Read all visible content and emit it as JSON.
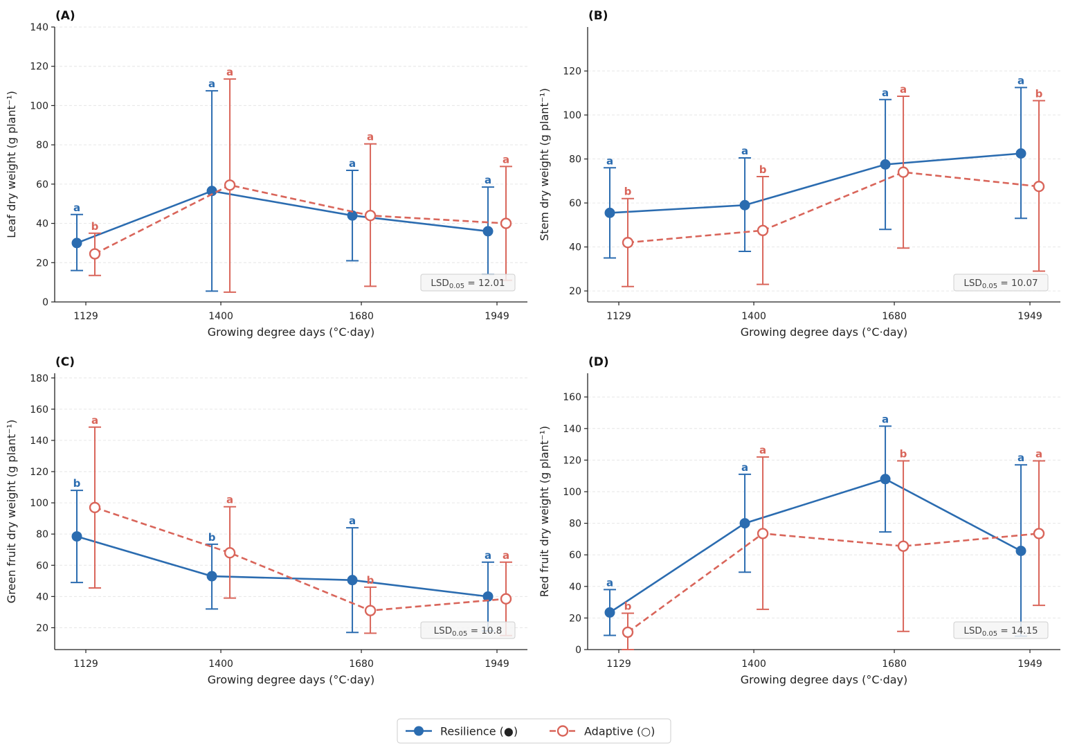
{
  "legend": {
    "placement": "bottom-center",
    "entries": [
      {
        "label": "Resilience (●)",
        "color": "#2b6cb0",
        "marker": "filled-circle",
        "line": "solid"
      },
      {
        "label": "Adaptive (○)",
        "color": "#d9655a",
        "marker": "open-circle",
        "line": "dashed"
      }
    ]
  },
  "chart_data": [
    {
      "type": "line",
      "panel_label": "(A)",
      "title": "",
      "xlabel": "Growing degree days (°C·day)",
      "ylabel": "Leaf dry weight (g plant⁻¹)",
      "categories": [
        "1129",
        "1400",
        "1680",
        "1949"
      ],
      "ylim": [
        0,
        140
      ],
      "yticks": [
        0,
        20,
        40,
        60,
        80,
        100,
        120,
        140
      ],
      "grid": "horizontal-dashed",
      "annotation": {
        "lsd_prefix": "LSD",
        "lsd_sub": "0.05",
        "lsd_value": " = 12.01"
      },
      "series": [
        {
          "name": "Resilience (●)",
          "values": [
            30,
            56.5,
            44,
            36
          ],
          "err_low": [
            16,
            5.5,
            21,
            14
          ],
          "err_high": [
            44.5,
            107.5,
            67,
            58.5
          ],
          "letters": [
            "a",
            "a",
            "a",
            "a"
          ]
        },
        {
          "name": "Adaptive (○)",
          "values": [
            24.5,
            59.5,
            44,
            40
          ],
          "err_low": [
            13.5,
            5,
            8,
            11
          ],
          "err_high": [
            35,
            113.5,
            80.5,
            69
          ],
          "letters": [
            "b",
            "a",
            "a",
            "a"
          ]
        }
      ]
    },
    {
      "type": "line",
      "panel_label": "(B)",
      "title": "",
      "xlabel": "Growing degree days (°C·day)",
      "ylabel": "Stem dry weight (g plant⁻¹)",
      "categories": [
        "1129",
        "1400",
        "1680",
        "1949"
      ],
      "ylim": [
        15,
        140
      ],
      "yticks": [
        20,
        40,
        60,
        80,
        100,
        120
      ],
      "grid": "horizontal-dashed",
      "annotation": {
        "lsd_prefix": "LSD",
        "lsd_sub": "0.05",
        "lsd_value": " = 10.07"
      },
      "series": [
        {
          "name": "Resilience (●)",
          "values": [
            55.5,
            59,
            77.5,
            82.5
          ],
          "err_low": [
            35,
            38,
            48,
            53
          ],
          "err_high": [
            76,
            80.5,
            107,
            112.5
          ],
          "letters": [
            "a",
            "a",
            "a",
            "a"
          ]
        },
        {
          "name": "Adaptive (○)",
          "values": [
            42,
            47.5,
            74,
            67.5
          ],
          "err_low": [
            22,
            23,
            39.5,
            29
          ],
          "err_high": [
            62,
            72,
            108.5,
            106.5
          ],
          "letters": [
            "b",
            "b",
            "a",
            "b"
          ]
        }
      ]
    },
    {
      "type": "line",
      "panel_label": "(C)",
      "title": "",
      "xlabel": "Growing degree days (°C·day)",
      "ylabel": "Green fruit dry weight (g plant⁻¹)",
      "categories": [
        "1129",
        "1400",
        "1680",
        "1949"
      ],
      "ylim": [
        6,
        183
      ],
      "yticks": [
        20,
        40,
        60,
        80,
        100,
        120,
        140,
        160,
        180
      ],
      "grid": "horizontal-dashed",
      "annotation": {
        "lsd_prefix": "LSD",
        "lsd_sub": "0.05",
        "lsd_value": " = 10.8"
      },
      "series": [
        {
          "name": "Resilience (●)",
          "values": [
            78.5,
            53,
            50.5,
            40
          ],
          "err_low": [
            49,
            32,
            17,
            18
          ],
          "err_high": [
            108,
            73.5,
            84,
            62
          ],
          "letters": [
            "b",
            "b",
            "a",
            "a"
          ]
        },
        {
          "name": "Adaptive (○)",
          "values": [
            97,
            68,
            31,
            38.5
          ],
          "err_low": [
            45.5,
            39,
            16.5,
            15
          ],
          "err_high": [
            148.5,
            97.5,
            46,
            62
          ],
          "letters": [
            "a",
            "a",
            "b",
            "a"
          ]
        }
      ]
    },
    {
      "type": "line",
      "panel_label": "(D)",
      "title": "",
      "xlabel": "Growing degree days (°C·day)",
      "ylabel": "Red fruit dry weight (g plant⁻¹)",
      "categories": [
        "1129",
        "1400",
        "1680",
        "1949"
      ],
      "ylim": [
        0,
        175
      ],
      "yticks": [
        0,
        20,
        40,
        60,
        80,
        100,
        120,
        140,
        160
      ],
      "grid": "horizontal-dashed",
      "annotation": {
        "lsd_prefix": "LSD",
        "lsd_sub": "0.05",
        "lsd_value": " = 14.15"
      },
      "series": [
        {
          "name": "Resilience (●)",
          "values": [
            23.5,
            80,
            108,
            62.5
          ],
          "err_low": [
            9,
            49,
            74.5,
            8.5
          ],
          "err_high": [
            38,
            111,
            141.5,
            117
          ],
          "letters": [
            "a",
            "a",
            "a",
            "a"
          ]
        },
        {
          "name": "Adaptive (○)",
          "values": [
            11,
            73.5,
            65.5,
            73.5
          ],
          "err_low": [
            0,
            25.5,
            11.5,
            28
          ],
          "err_high": [
            23,
            122,
            119.5,
            119.5
          ],
          "letters": [
            "b",
            "a",
            "b",
            "a"
          ]
        }
      ]
    }
  ]
}
